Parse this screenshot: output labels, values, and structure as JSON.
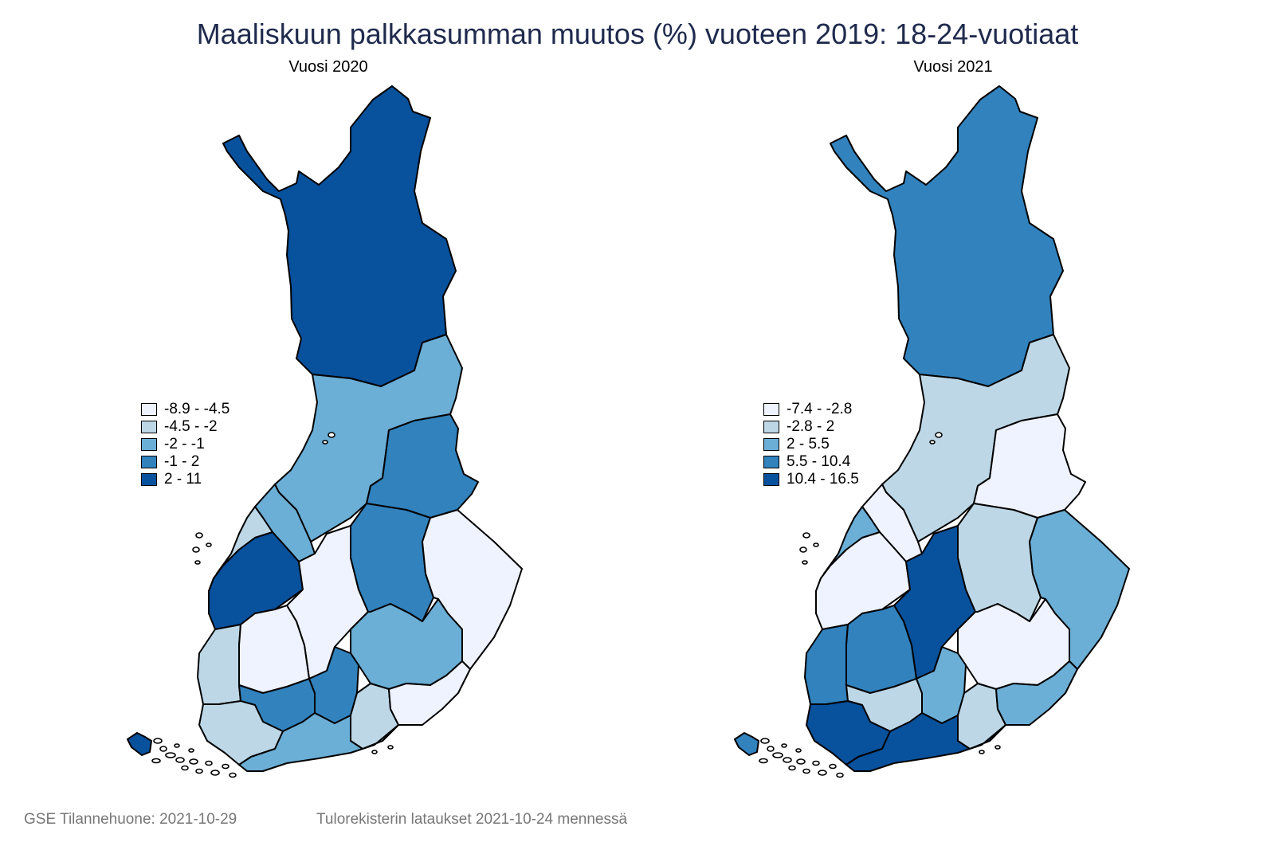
{
  "title": "Maaliskuun palkkasumman muutos (%) vuoteen 2019: 18-24-vuotiaat",
  "colors": {
    "c1": "#eff3ff",
    "c2": "#bdd7e7",
    "c3": "#6baed6",
    "c4": "#3182bd",
    "c5": "#08519c"
  },
  "panels": [
    {
      "title": "Vuosi 2020",
      "legend": [
        "-8.9  -  -4.5",
        "-4.5  -  -2",
        "-2  -  -1",
        "-1  -  2",
        "2  -  11"
      ],
      "fills": {
        "lappi": "c5",
        "pohjois_pohjanmaa": "c3",
        "kainuu": "c4",
        "keski_pohjanmaa": "c3",
        "pohjanmaa_n": "c2",
        "pohjanmaa": "c5",
        "keski_suomi": "c1",
        "pohjois_savo": "c4",
        "pohjois_karjala": "c1",
        "etela_savo": "c3",
        "satakunta": "c2",
        "pirkanmaa": "c1",
        "kanta_hame": "c4",
        "paijat_hame": "c4",
        "kymenlaakso": "c2",
        "etela_karjala": "c1",
        "varsinais_suomi": "c2",
        "uusimaa": "c3",
        "ahvenanmaa": "c5"
      }
    },
    {
      "title": "Vuosi 2021",
      "legend": [
        "-7.4  -  -2.8",
        "-2.8  -  2",
        "2  -  5.5",
        "5.5  -  10.4",
        "10.4  -  16.5"
      ],
      "fills": {
        "lappi": "c4",
        "pohjois_pohjanmaa": "c2",
        "kainuu": "c1",
        "keski_pohjanmaa": "c1",
        "pohjanmaa_n": "c3",
        "pohjanmaa": "c1",
        "keski_suomi": "c5",
        "pohjois_savo": "c2",
        "pohjois_karjala": "c3",
        "etela_savo": "c1",
        "satakunta": "c4",
        "pirkanmaa": "c4",
        "kanta_hame": "c2",
        "paijat_hame": "c3",
        "kymenlaakso": "c2",
        "etela_karjala": "c3",
        "varsinais_suomi": "c5",
        "uusimaa": "c5",
        "ahvenanmaa": "c4"
      }
    }
  ],
  "footer": {
    "left": "GSE Tilannehuone: 2021-10-29",
    "right": "Tulorekisterin lataukset 2021-10-24 mennessä"
  }
}
